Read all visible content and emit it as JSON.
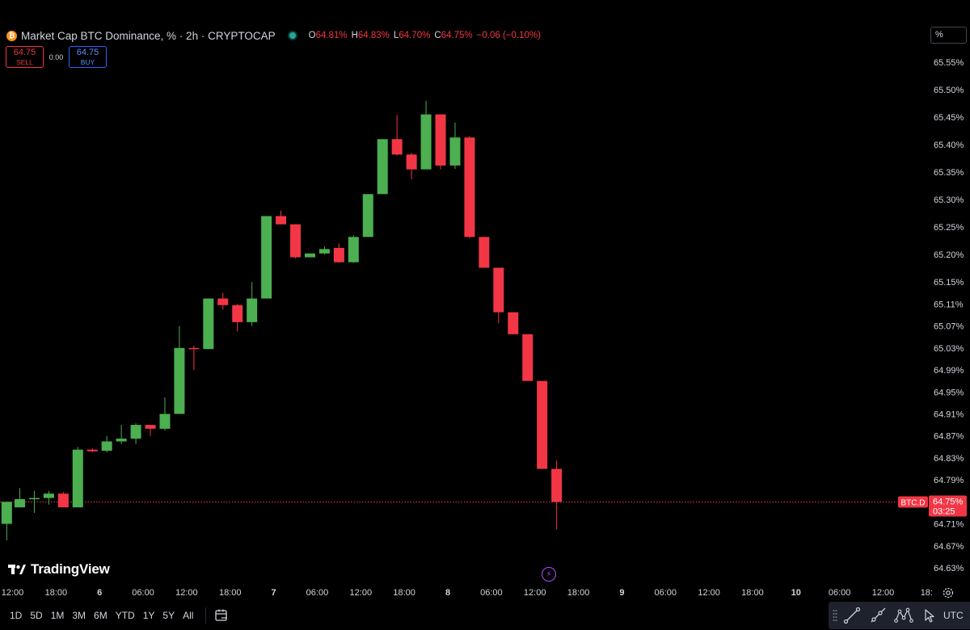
{
  "header": {
    "symbol_badge": "₿",
    "title": "Market Cap BTC Dominance, % · 2h · CRYPTOCAP",
    "ohlc": [
      {
        "key": "O",
        "value": "64.81%"
      },
      {
        "key": "H",
        "value": "64.83%"
      },
      {
        "key": "L",
        "value": "64.70%"
      },
      {
        "key": "C",
        "value": "64.75%"
      }
    ],
    "change": "−0.06 (−0.10%)"
  },
  "trade": {
    "sell_price": "64.75",
    "sell_label": "SELL",
    "spread": "0.00",
    "buy_price": "64.75",
    "buy_label": "BUY"
  },
  "scale_mode": "%",
  "watermark": "TradingView",
  "colors": {
    "up": "#26a69a",
    "up_bright": "#4caf50",
    "down": "#f23645",
    "bg": "#000000",
    "text": "#d1d4dc"
  },
  "chart_data": {
    "type": "candlestick",
    "timeframe": "2h",
    "y_axis": {
      "labels": [
        "65.55%",
        "65.50%",
        "65.45%",
        "65.40%",
        "65.35%",
        "65.30%",
        "65.25%",
        "65.20%",
        "65.15%",
        "65.11%",
        "65.07%",
        "65.03%",
        "64.99%",
        "64.95%",
        "64.91%",
        "64.87%",
        "64.83%",
        "64.79%",
        "64.75%",
        "64.71%",
        "64.67%",
        "64.63%"
      ],
      "values": [
        65.55,
        65.5,
        65.45,
        65.4,
        65.35,
        65.3,
        65.25,
        65.2,
        65.15,
        65.11,
        65.07,
        65.03,
        64.99,
        64.95,
        64.91,
        64.87,
        64.83,
        64.79,
        64.75,
        64.71,
        64.67,
        64.63
      ],
      "scale": "log"
    },
    "x_axis": {
      "labels": [
        "12:00",
        "18:00",
        "6",
        "06:00",
        "12:00",
        "18:00",
        "7",
        "06:00",
        "12:00",
        "18:00",
        "8",
        "06:00",
        "12:00",
        "18:00",
        "9",
        "06:00",
        "12:00",
        "18:00",
        "10",
        "06:00",
        "12:00",
        "18:"
      ],
      "bar_index": [
        0,
        3,
        6,
        9,
        12,
        15,
        18,
        21,
        24,
        27,
        30,
        33,
        36,
        39,
        42,
        45,
        48,
        51,
        54,
        57,
        60,
        63
      ],
      "bold": [
        "6",
        "7",
        "8",
        "9",
        "10"
      ]
    },
    "current_price": {
      "symbol": "BTC.D",
      "value": "64.75%",
      "countdown": "03:25",
      "price": 64.75
    },
    "candles": [
      {
        "i": -0.4,
        "o": 64.71,
        "h": 64.75,
        "l": 64.68,
        "c": 64.75
      },
      {
        "i": 0.5,
        "o": 64.74,
        "h": 64.775,
        "l": 64.74,
        "c": 64.755
      },
      {
        "i": 1.5,
        "o": 64.755,
        "h": 64.77,
        "l": 64.73,
        "c": 64.757
      },
      {
        "i": 2.5,
        "o": 64.757,
        "h": 64.77,
        "l": 64.745,
        "c": 64.765
      },
      {
        "i": 3.5,
        "o": 64.765,
        "h": 64.768,
        "l": 64.74,
        "c": 64.74
      },
      {
        "i": 4.5,
        "o": 64.74,
        "h": 64.85,
        "l": 64.74,
        "c": 64.845
      },
      {
        "i": 5.5,
        "o": 64.845,
        "h": 64.848,
        "l": 64.84,
        "c": 64.842
      },
      {
        "i": 6.5,
        "o": 64.843,
        "h": 64.87,
        "l": 64.84,
        "c": 64.86
      },
      {
        "i": 7.5,
        "o": 64.86,
        "h": 64.89,
        "l": 64.855,
        "c": 64.865
      },
      {
        "i": 8.5,
        "o": 64.865,
        "h": 64.893,
        "l": 64.855,
        "c": 64.89
      },
      {
        "i": 9.5,
        "o": 64.89,
        "h": 64.89,
        "l": 64.87,
        "c": 64.883
      },
      {
        "i": 10.5,
        "o": 64.883,
        "h": 64.94,
        "l": 64.88,
        "c": 64.91
      },
      {
        "i": 11.5,
        "o": 64.91,
        "h": 65.07,
        "l": 64.91,
        "c": 65.03
      },
      {
        "i": 12.5,
        "o": 65.03,
        "h": 65.034,
        "l": 64.99,
        "c": 65.028
      },
      {
        "i": 13.5,
        "o": 65.028,
        "h": 65.12,
        "l": 65.028,
        "c": 65.12
      },
      {
        "i": 14.5,
        "o": 65.12,
        "h": 65.13,
        "l": 65.1,
        "c": 65.108
      },
      {
        "i": 15.5,
        "o": 65.108,
        "h": 65.11,
        "l": 65.06,
        "c": 65.077
      },
      {
        "i": 16.5,
        "o": 65.077,
        "h": 65.15,
        "l": 65.07,
        "c": 65.12
      },
      {
        "i": 17.5,
        "o": 65.12,
        "h": 65.27,
        "l": 65.12,
        "c": 65.27
      },
      {
        "i": 18.5,
        "o": 65.27,
        "h": 65.28,
        "l": 65.255,
        "c": 65.255
      },
      {
        "i": 19.5,
        "o": 65.255,
        "h": 65.255,
        "l": 65.193,
        "c": 65.195
      },
      {
        "i": 20.5,
        "o": 65.195,
        "h": 65.2,
        "l": 65.195,
        "c": 65.202
      },
      {
        "i": 21.5,
        "o": 65.202,
        "h": 65.215,
        "l": 65.2,
        "c": 65.21
      },
      {
        "i": 22.5,
        "o": 65.212,
        "h": 65.22,
        "l": 65.185,
        "c": 65.186
      },
      {
        "i": 23.5,
        "o": 65.186,
        "h": 65.235,
        "l": 65.185,
        "c": 65.232
      },
      {
        "i": 24.5,
        "o": 65.232,
        "h": 65.31,
        "l": 65.232,
        "c": 65.31
      },
      {
        "i": 25.5,
        "o": 65.31,
        "h": 65.41,
        "l": 65.31,
        "c": 65.41
      },
      {
        "i": 26.5,
        "o": 65.41,
        "h": 65.454,
        "l": 65.38,
        "c": 65.382
      },
      {
        "i": 27.5,
        "o": 65.382,
        "h": 65.385,
        "l": 65.337,
        "c": 65.355
      },
      {
        "i": 28.5,
        "o": 65.355,
        "h": 65.48,
        "l": 65.355,
        "c": 65.455
      },
      {
        "i": 29.5,
        "o": 65.455,
        "h": 65.455,
        "l": 65.355,
        "c": 65.362
      },
      {
        "i": 30.5,
        "o": 65.362,
        "h": 65.44,
        "l": 65.356,
        "c": 65.413
      },
      {
        "i": 31.5,
        "o": 65.413,
        "h": 65.416,
        "l": 65.23,
        "c": 65.232
      },
      {
        "i": 32.5,
        "o": 65.232,
        "h": 65.232,
        "l": 65.176,
        "c": 65.176
      },
      {
        "i": 33.5,
        "o": 65.176,
        "h": 65.176,
        "l": 65.075,
        "c": 65.095
      },
      {
        "i": 34.5,
        "o": 65.095,
        "h": 65.095,
        "l": 65.055,
        "c": 65.055
      },
      {
        "i": 35.5,
        "o": 65.055,
        "h": 65.055,
        "l": 64.97,
        "c": 64.97
      },
      {
        "i": 36.5,
        "o": 64.97,
        "h": 64.97,
        "l": 64.81,
        "c": 64.81
      },
      {
        "i": 37.5,
        "o": 64.81,
        "h": 64.825,
        "l": 64.7,
        "c": 64.75
      }
    ]
  },
  "bottom_bar": {
    "ranges": [
      "1D",
      "5D",
      "1M",
      "3M",
      "6M",
      "YTD",
      "1Y",
      "5Y",
      "All"
    ],
    "timezone": "UTC"
  },
  "drawing_tools": [
    "trend-line-icon",
    "ray-icon",
    "pattern-icon",
    "cursor-icon"
  ]
}
